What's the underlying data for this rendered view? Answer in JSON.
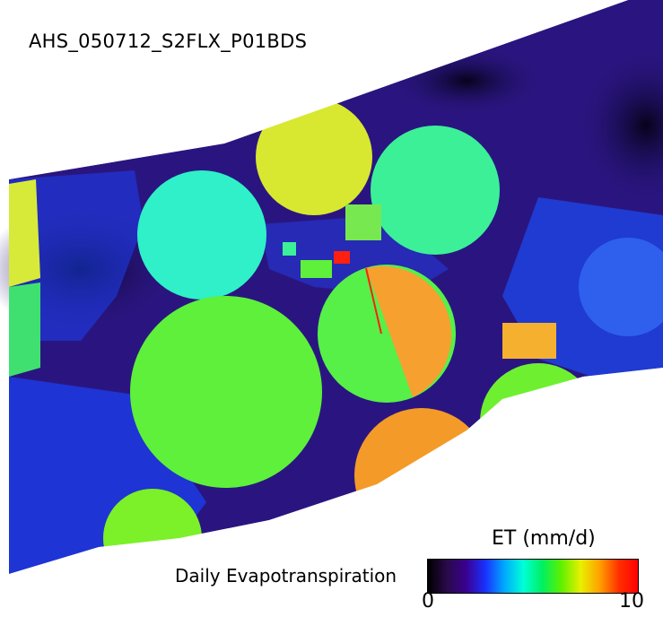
{
  "title": "AHS_050712_S2FLX_P01BDS",
  "subtitle": "Daily Evapotranspiration",
  "legend": {
    "title": "ET (mm/d)",
    "min_label": "0",
    "max_label": "10",
    "stops": [
      "#000000",
      "#2a0a4a",
      "#3a0090",
      "#1a30ff",
      "#00a8ff",
      "#00ffd8",
      "#00f060",
      "#60f000",
      "#e8f000",
      "#ffa000",
      "#ff3000",
      "#ff0000"
    ]
  },
  "colors": {
    "background_low": "#2a1580",
    "background_mid": "#1b3ff0",
    "dark_patch": "#0a0520"
  },
  "fields": [
    {
      "label": "",
      "et": 7.5,
      "color": "#d8e830"
    },
    {
      "label": "",
      "et": 5.8,
      "color": "#3cf098"
    },
    {
      "label": "",
      "et": 5.2,
      "color": "#2ff0c8"
    },
    {
      "label": "",
      "et": 6.2,
      "color": "#5ef03a"
    },
    {
      "label": "",
      "et": 8.2,
      "color": "#f6a030"
    },
    {
      "label": "",
      "et": 6.0,
      "color": "#56f048"
    },
    {
      "label": "",
      "et": 8.4,
      "color": "#f49a28"
    },
    {
      "label": "",
      "et": 6.4,
      "color": "#6ef030"
    },
    {
      "label": "",
      "et": 6.4,
      "color": "#7cf028"
    }
  ]
}
